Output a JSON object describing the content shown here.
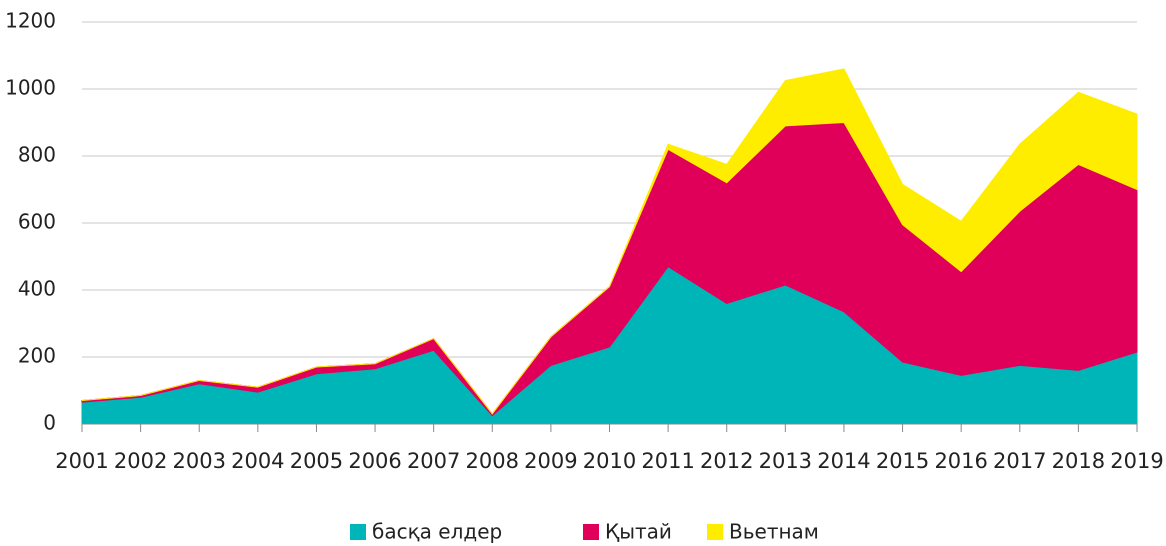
{
  "chart_data": {
    "type": "stacked_area",
    "categories": [
      "2001",
      "2002",
      "2003",
      "2004",
      "2005",
      "2006",
      "2007",
      "2008",
      "2009",
      "2010",
      "2011",
      "2012",
      "2013",
      "2014",
      "2015",
      "2016",
      "2017",
      "2018",
      "2019"
    ],
    "series": [
      {
        "name": "басқа елдер",
        "color": "#00b5b8",
        "values": [
          65,
          80,
          120,
          95,
          150,
          165,
          220,
          25,
          175,
          230,
          470,
          360,
          415,
          335,
          185,
          145,
          175,
          160,
          215
        ]
      },
      {
        "name": "Қытай",
        "color": "#e0005a",
        "values": [
          5,
          5,
          10,
          15,
          20,
          15,
          35,
          5,
          85,
          180,
          350,
          360,
          475,
          565,
          410,
          310,
          460,
          615,
          485
        ]
      },
      {
        "name": "Вьетнам",
        "color": "#ffed00",
        "values": [
          0,
          0,
          0,
          0,
          0,
          0,
          0,
          0,
          0,
          0,
          15,
          55,
          135,
          160,
          120,
          150,
          200,
          215,
          225
        ]
      }
    ],
    "ylim": [
      0,
      1200
    ],
    "yticks": [
      0,
      200,
      400,
      600,
      800,
      1000,
      1200
    ],
    "grid": true
  }
}
